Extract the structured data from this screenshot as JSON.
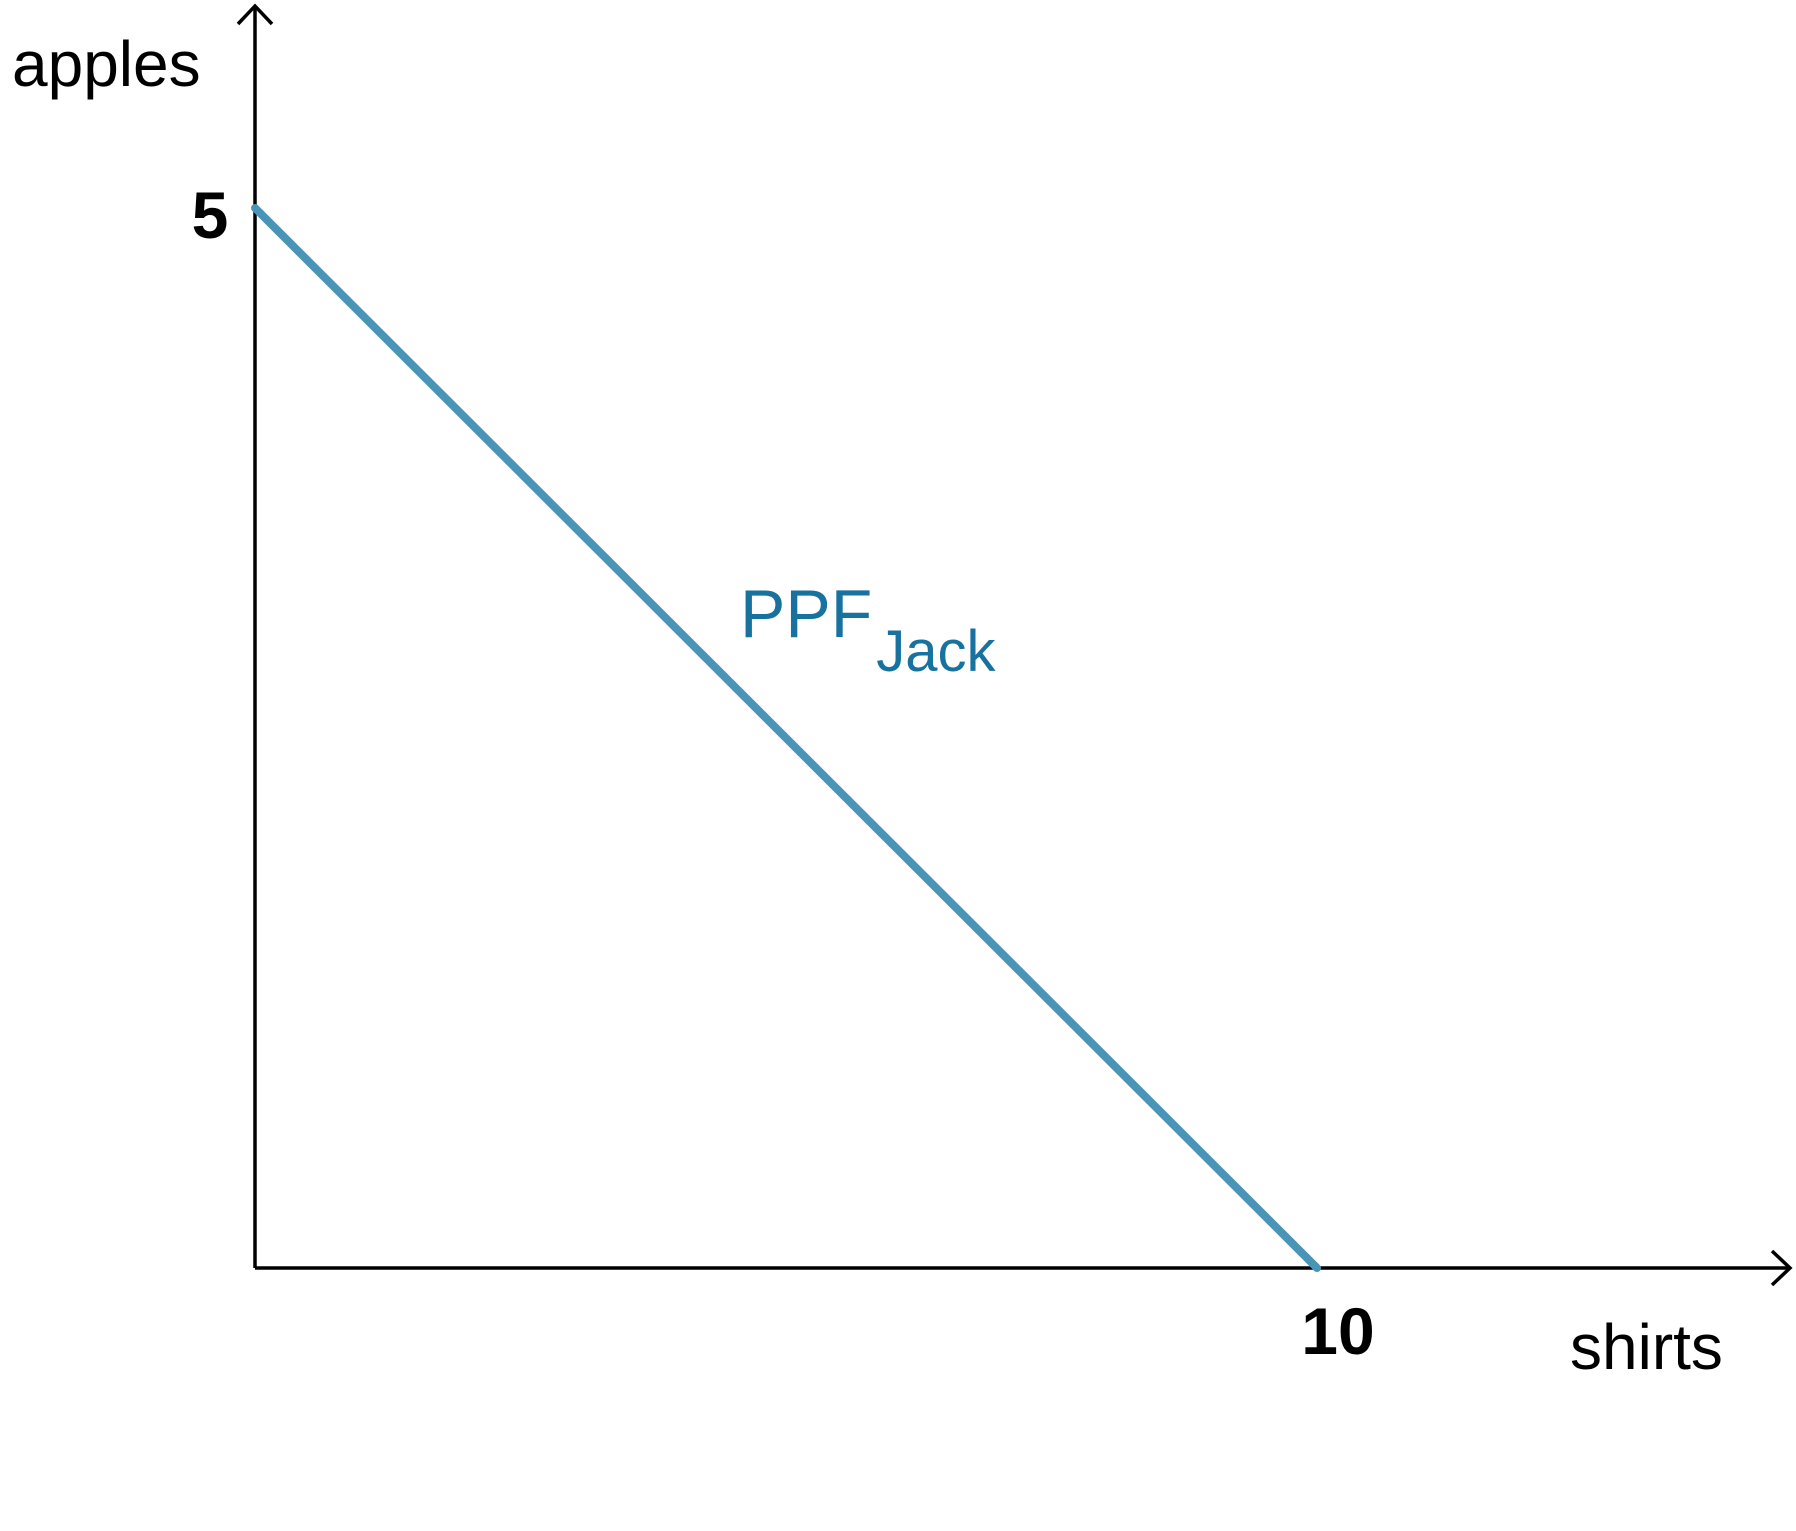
{
  "chart_data": {
    "type": "line",
    "title": "",
    "xlabel": "shirts",
    "ylabel": "apples",
    "xlim": [
      0,
      10
    ],
    "ylim": [
      0,
      5
    ],
    "grid": false,
    "x_ticks": [
      {
        "value": 10,
        "label": "10"
      }
    ],
    "y_ticks": [
      {
        "value": 5,
        "label": "5"
      }
    ],
    "series": [
      {
        "name": "PPF",
        "subscript": "Jack",
        "color": "#4a94b8",
        "label_color": "#17729f",
        "points": [
          {
            "x": 0,
            "y": 5
          },
          {
            "x": 10,
            "y": 0
          }
        ]
      }
    ]
  }
}
